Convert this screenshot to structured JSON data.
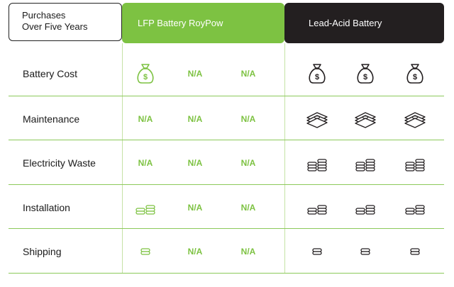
{
  "header": {
    "corner_line1": "Purchases",
    "corner_line2": "Over Five Years",
    "lfp_title": "LFP Battery RoyPow",
    "lead_title": "Lead-Acid Battery"
  },
  "colors": {
    "lfp": "#7dc242",
    "lead": "#231f20",
    "divider": "#8cc95a"
  },
  "na_text": "N/A",
  "rows": [
    {
      "label": "Battery Cost",
      "lfp": [
        "money-bag-icon",
        "N/A",
        "N/A"
      ],
      "lead": [
        "money-bag-icon",
        "money-bag-icon",
        "money-bag-icon"
      ]
    },
    {
      "label": "Maintenance",
      "lfp": [
        "N/A",
        "N/A",
        "N/A"
      ],
      "lead": [
        "cash-stack-icon",
        "cash-stack-icon",
        "cash-stack-icon"
      ]
    },
    {
      "label": "Electricity Waste",
      "lfp": [
        "N/A",
        "N/A",
        "N/A"
      ],
      "lead": [
        "coins-large-icon",
        "coins-large-icon",
        "coins-large-icon"
      ]
    },
    {
      "label": "Installation",
      "lfp": [
        "coins-medium-icon",
        "N/A",
        "N/A"
      ],
      "lead": [
        "coins-medium-icon",
        "coins-medium-icon",
        "coins-medium-icon"
      ]
    },
    {
      "label": "Shipping",
      "lfp": [
        "coin-single-icon",
        "N/A",
        "N/A"
      ],
      "lead": [
        "coin-single-icon",
        "coin-single-icon",
        "coin-single-icon"
      ]
    }
  ]
}
